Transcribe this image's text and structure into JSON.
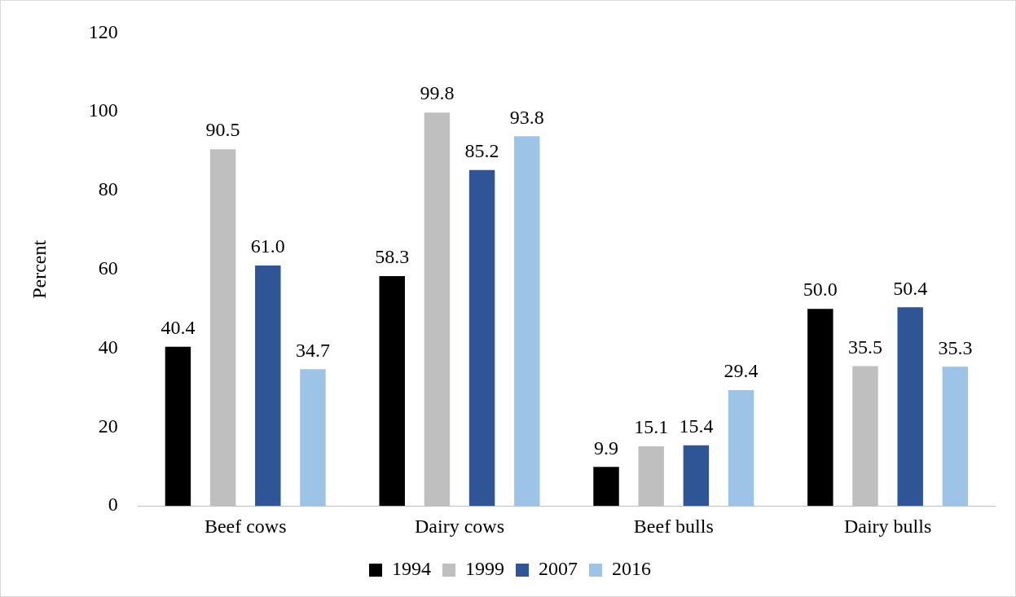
{
  "chart_data": {
    "type": "bar",
    "ylabel": "Percent",
    "categories": [
      "Beef cows",
      "Dairy cows",
      "Beef bulls",
      "Dairy bulls"
    ],
    "series": [
      {
        "name": "1994",
        "color": "#000000",
        "values": [
          40.4,
          58.3,
          9.9,
          50.0
        ],
        "value_labels": [
          "40.4",
          "58.3",
          "9.9",
          "50.0"
        ]
      },
      {
        "name": "1999",
        "color": "#bfbfbf",
        "values": [
          90.5,
          99.8,
          15.1,
          35.5
        ],
        "value_labels": [
          "90.5",
          "99.8",
          "15.1",
          "35.5"
        ]
      },
      {
        "name": "2007",
        "color": "#2f5597",
        "values": [
          61.0,
          85.2,
          15.4,
          50.4
        ],
        "value_labels": [
          "61.0",
          "85.2",
          "15.4",
          "50.4"
        ]
      },
      {
        "name": "2016",
        "color": "#9dc3e6",
        "values": [
          34.7,
          93.8,
          29.4,
          35.3
        ],
        "value_labels": [
          "34.7",
          "93.8",
          "29.4",
          "35.3"
        ]
      }
    ],
    "ylim": [
      0,
      120
    ],
    "yticks": [
      0,
      20,
      40,
      60,
      80,
      100,
      120
    ],
    "grid": false,
    "legend": "bottom"
  }
}
